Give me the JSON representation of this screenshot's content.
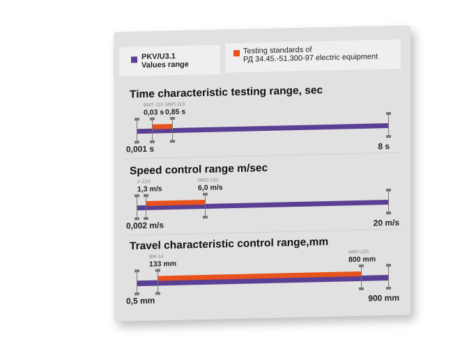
{
  "legend": {
    "pkv": {
      "line1": "PKV/U3.1",
      "line2": "Values range",
      "color": "#5b3f94"
    },
    "standards": {
      "line1": "Testing standards of",
      "line2": "РД 34.45.-51.300-97  electric equipment",
      "color": "#e8521c"
    }
  },
  "ranges": [
    {
      "title": "Time characteristic testing range, sec",
      "min": "0,001 s",
      "max": "8 s",
      "std_from": {
        "device": "ВМТ-110",
        "value": "0,03 s"
      },
      "std_to": {
        "device": "МКП-110",
        "value": "0,85 s"
      }
    },
    {
      "title": "Speed control range m/sec",
      "min": "0,002 m/s",
      "max": "20 m/s",
      "std_from": {
        "device": "У-220",
        "value": "1,3 m/s"
      },
      "std_to": {
        "device": "МКО-110",
        "value": "6,0 m/s"
      }
    },
    {
      "title": "Travel characteristic control range,mm",
      "min": "0,5 mm",
      "max": "900 mm",
      "std_from": {
        "device": "ВМ-14",
        "value": "133 mm"
      },
      "std_to": {
        "device": "МКП-220",
        "value": "800 mm"
      }
    }
  ]
}
